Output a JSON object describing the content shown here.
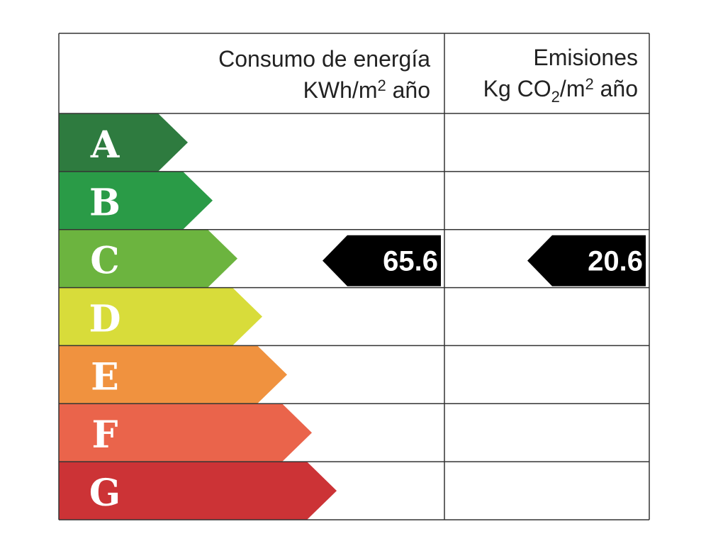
{
  "header": {
    "consumption": {
      "line1": "Consumo de energía",
      "line2": [
        "KWh/m",
        "2",
        " año"
      ]
    },
    "emissions": {
      "line1": "Emisiones",
      "line2": [
        "Kg CO",
        "2",
        "/m",
        "2",
        " año"
      ]
    }
  },
  "rows": [
    {
      "letter": "A",
      "color": "#2e7b3f"
    },
    {
      "letter": "B",
      "color": "#2a9b47"
    },
    {
      "letter": "C",
      "color": "#6cb43f",
      "consumption": "65.6",
      "emissions": "20.6"
    },
    {
      "letter": "D",
      "color": "#d8dc3a"
    },
    {
      "letter": "E",
      "color": "#f0923f"
    },
    {
      "letter": "F",
      "color": "#ea644b"
    },
    {
      "letter": "G",
      "color": "#cc3336"
    }
  ]
}
